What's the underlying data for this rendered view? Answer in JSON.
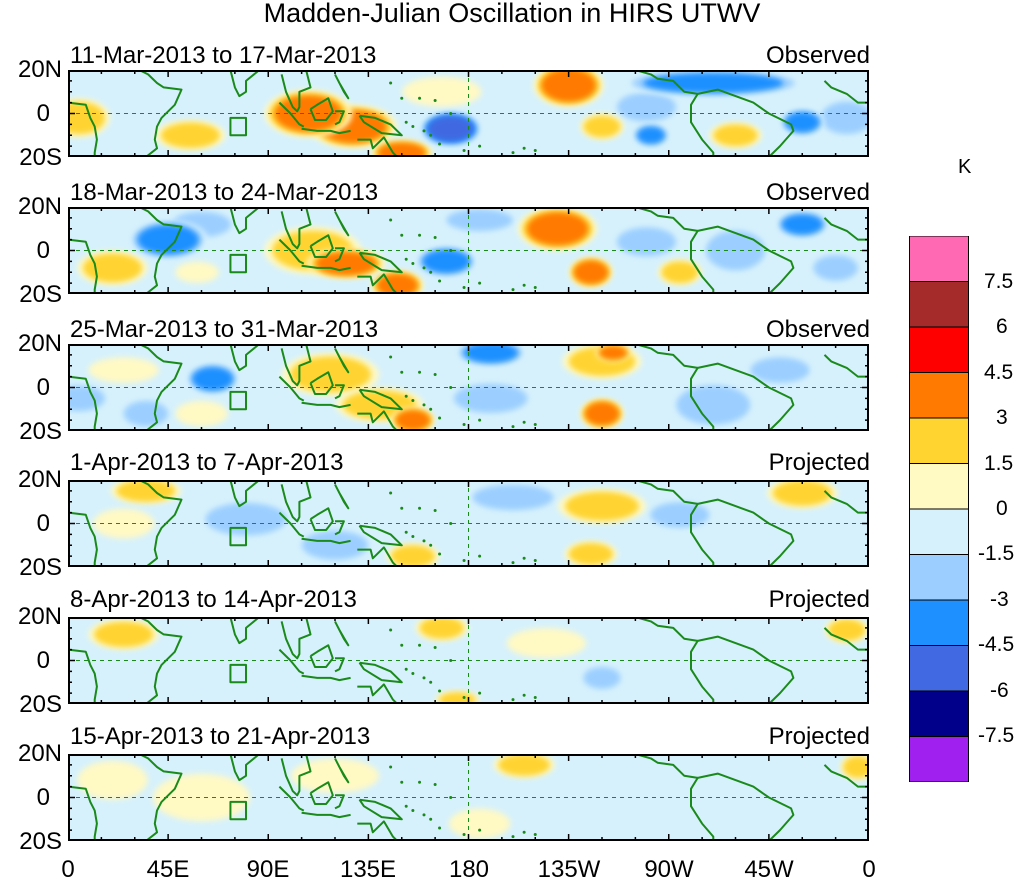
{
  "chart_data": {
    "type": "heatmap",
    "title": "Madden-Julian Oscillation in HIRS UTWV",
    "variable": "HIRS UTWV anomaly",
    "x_ticks": [
      "0",
      "45E",
      "90E",
      "135E",
      "180",
      "135W",
      "90W",
      "45W",
      "0"
    ],
    "y_ticks": [
      "20N",
      "0",
      "20S"
    ],
    "x_range_deg": [
      0,
      360
    ],
    "y_range_deg": [
      -20,
      20
    ],
    "colorbar": {
      "unit": "K",
      "tick_labels": [
        "7.5",
        "6",
        "4.5",
        "3",
        "1.5",
        "0",
        "-1.5",
        "-3",
        "-4.5",
        "-6",
        "-7.5"
      ],
      "levels": [
        -7.5,
        -6,
        -4.5,
        -3,
        -1.5,
        0,
        1.5,
        3,
        4.5,
        6,
        7.5
      ],
      "colors": [
        "#a020f0",
        "#00008b",
        "#4169e1",
        "#1e90ff",
        "#9ccfff",
        "#d6f1fc",
        "#fff9c4",
        "#ffd431",
        "#ff7a00",
        "#ff0000",
        "#a52a2a",
        "#ff69b4"
      ]
    },
    "panels": [
      {
        "label": "11-Mar-2013 to 17-Mar-2013",
        "kind": "Observed",
        "features": [
          {
            "lon": 5,
            "lat": -2,
            "v": 1.8,
            "rlon": 12,
            "rlat": 8
          },
          {
            "lon": 35,
            "lat": 10,
            "v": -1.4,
            "rlon": 12,
            "rlat": 6
          },
          {
            "lon": 55,
            "lat": -10,
            "v": 1.5,
            "rlon": 14,
            "rlat": 6
          },
          {
            "lon": 90,
            "lat": 15,
            "v": -1.3,
            "rlon": 10,
            "rlat": 5
          },
          {
            "lon": 108,
            "lat": 0,
            "v": 3.4,
            "rlon": 18,
            "rlat": 10
          },
          {
            "lon": 128,
            "lat": -6,
            "v": 3.3,
            "rlon": 18,
            "rlat": 9
          },
          {
            "lon": 150,
            "lat": -18,
            "v": 3.3,
            "rlon": 12,
            "rlat": 5
          },
          {
            "lon": 172,
            "lat": -7,
            "v": -4.6,
            "rlon": 12,
            "rlat": 7
          },
          {
            "lon": 168,
            "lat": 10,
            "v": 1.4,
            "rlon": 16,
            "rlat": 6
          },
          {
            "lon": 225,
            "lat": 13,
            "v": 3.4,
            "rlon": 14,
            "rlat": 9
          },
          {
            "lon": 200,
            "lat": -10,
            "v": -1.4,
            "rlon": 15,
            "rlat": 6
          },
          {
            "lon": 240,
            "lat": -6,
            "v": 1.6,
            "rlon": 8,
            "rlat": 5
          },
          {
            "lon": 260,
            "lat": 3,
            "v": -1.5,
            "rlon": 14,
            "rlat": 7
          },
          {
            "lon": 262,
            "lat": -10,
            "v": -3.2,
            "rlon": 6,
            "rlat": 4
          },
          {
            "lon": 290,
            "lat": 14,
            "v": -3.0,
            "rlon": 40,
            "rlat": 5
          },
          {
            "lon": 300,
            "lat": -10,
            "v": 1.6,
            "rlon": 10,
            "rlat": 5
          },
          {
            "lon": 330,
            "lat": -4,
            "v": -3.2,
            "rlon": 8,
            "rlat": 5
          },
          {
            "lon": 350,
            "lat": -2,
            "v": -1.6,
            "rlon": 12,
            "rlat": 8
          }
        ]
      },
      {
        "label": "18-Mar-2013 to 24-Mar-2013",
        "kind": "Observed",
        "features": [
          {
            "lon": 20,
            "lat": -8,
            "v": 1.5,
            "rlon": 14,
            "rlat": 7
          },
          {
            "lon": 45,
            "lat": 5,
            "v": -3.1,
            "rlon": 16,
            "rlat": 8
          },
          {
            "lon": 60,
            "lat": 12,
            "v": -1.5,
            "rlon": 14,
            "rlat": 6
          },
          {
            "lon": 80,
            "lat": -10,
            "v": -1.4,
            "rlon": 14,
            "rlat": 6
          },
          {
            "lon": 58,
            "lat": -10,
            "v": 1.4,
            "rlon": 8,
            "rlat": 4
          },
          {
            "lon": 110,
            "lat": 0,
            "v": 1.8,
            "rlon": 20,
            "rlat": 10
          },
          {
            "lon": 125,
            "lat": -6,
            "v": 3.1,
            "rlon": 16,
            "rlat": 6
          },
          {
            "lon": 148,
            "lat": -16,
            "v": 3.3,
            "rlon": 10,
            "rlat": 6
          },
          {
            "lon": 170,
            "lat": -5,
            "v": -3.1,
            "rlon": 12,
            "rlat": 6
          },
          {
            "lon": 110,
            "lat": 16,
            "v": -1.4,
            "rlon": 15,
            "rlat": 4
          },
          {
            "lon": 185,
            "lat": 14,
            "v": -1.5,
            "rlon": 16,
            "rlat": 5
          },
          {
            "lon": 220,
            "lat": 10,
            "v": 3.4,
            "rlon": 16,
            "rlat": 9
          },
          {
            "lon": 235,
            "lat": -10,
            "v": 3.1,
            "rlon": 8,
            "rlat": 6
          },
          {
            "lon": 260,
            "lat": 4,
            "v": -1.6,
            "rlon": 14,
            "rlat": 7
          },
          {
            "lon": 275,
            "lat": -10,
            "v": 1.5,
            "rlon": 8,
            "rlat": 5
          },
          {
            "lon": 300,
            "lat": 0,
            "v": -1.6,
            "rlon": 14,
            "rlat": 10
          },
          {
            "lon": 330,
            "lat": 12,
            "v": -3.0,
            "rlon": 10,
            "rlat": 5
          },
          {
            "lon": 345,
            "lat": -8,
            "v": -1.5,
            "rlon": 10,
            "rlat": 6
          }
        ]
      },
      {
        "label": "25-Mar-2013 to 31-Mar-2013",
        "kind": "Observed",
        "features": [
          {
            "lon": 5,
            "lat": -5,
            "v": -1.6,
            "rlon": 12,
            "rlat": 6
          },
          {
            "lon": 25,
            "lat": 8,
            "v": 1.4,
            "rlon": 14,
            "rlat": 5
          },
          {
            "lon": 35,
            "lat": -12,
            "v": -1.5,
            "rlon": 10,
            "rlat": 6
          },
          {
            "lon": 65,
            "lat": 4,
            "v": -3.1,
            "rlon": 10,
            "rlat": 6
          },
          {
            "lon": 60,
            "lat": -12,
            "v": 1.4,
            "rlon": 10,
            "rlat": 5
          },
          {
            "lon": 118,
            "lat": 6,
            "v": 1.5,
            "rlon": 20,
            "rlat": 9
          },
          {
            "lon": 140,
            "lat": -8,
            "v": 1.5,
            "rlon": 18,
            "rlat": 7
          },
          {
            "lon": 155,
            "lat": -15,
            "v": 3.1,
            "rlon": 8,
            "rlat": 5
          },
          {
            "lon": 190,
            "lat": 16,
            "v": -3.1,
            "rlon": 14,
            "rlat": 5
          },
          {
            "lon": 190,
            "lat": -5,
            "v": -1.6,
            "rlon": 18,
            "rlat": 7
          },
          {
            "lon": 240,
            "lat": 12,
            "v": 1.8,
            "rlon": 16,
            "rlat": 7
          },
          {
            "lon": 245,
            "lat": 16,
            "v": 3.2,
            "rlon": 6,
            "rlat": 3
          },
          {
            "lon": 240,
            "lat": -12,
            "v": 3.3,
            "rlon": 8,
            "rlat": 6
          },
          {
            "lon": 290,
            "lat": -8,
            "v": -1.5,
            "rlon": 18,
            "rlat": 10
          },
          {
            "lon": 320,
            "lat": 8,
            "v": -1.5,
            "rlon": 14,
            "rlat": 6
          }
        ]
      },
      {
        "label": "1-Apr-2013 to 7-Apr-2013",
        "kind": "Projected",
        "features": [
          {
            "lon": 35,
            "lat": 15,
            "v": 1.6,
            "rlon": 14,
            "rlat": 5
          },
          {
            "lon": 25,
            "lat": 0,
            "v": 1.4,
            "rlon": 12,
            "rlat": 6
          },
          {
            "lon": 80,
            "lat": 2,
            "v": -1.5,
            "rlon": 20,
            "rlat": 8
          },
          {
            "lon": 120,
            "lat": -10,
            "v": -1.5,
            "rlon": 16,
            "rlat": 7
          },
          {
            "lon": 155,
            "lat": -15,
            "v": 1.6,
            "rlon": 10,
            "rlat": 5
          },
          {
            "lon": 200,
            "lat": 12,
            "v": -1.6,
            "rlon": 20,
            "rlat": 6
          },
          {
            "lon": 240,
            "lat": 8,
            "v": 1.8,
            "rlon": 18,
            "rlat": 7
          },
          {
            "lon": 235,
            "lat": -14,
            "v": 1.7,
            "rlon": 10,
            "rlat": 5
          },
          {
            "lon": 275,
            "lat": 4,
            "v": -1.5,
            "rlon": 14,
            "rlat": 6
          },
          {
            "lon": 330,
            "lat": 14,
            "v": 1.8,
            "rlon": 14,
            "rlat": 6
          },
          {
            "lon": 310,
            "lat": -10,
            "v": -1.4,
            "rlon": 14,
            "rlat": 6
          }
        ]
      },
      {
        "label": "8-Apr-2013 to 14-Apr-2013",
        "kind": "Projected",
        "features": [
          {
            "lon": 25,
            "lat": 12,
            "v": 1.6,
            "rlon": 14,
            "rlat": 6
          },
          {
            "lon": 70,
            "lat": 2,
            "v": -1.3,
            "rlon": 18,
            "rlat": 7
          },
          {
            "lon": 120,
            "lat": 10,
            "v": -1.3,
            "rlon": 16,
            "rlat": 6
          },
          {
            "lon": 140,
            "lat": -12,
            "v": -1.4,
            "rlon": 14,
            "rlat": 6
          },
          {
            "lon": 168,
            "lat": 15,
            "v": 1.6,
            "rlon": 10,
            "rlat": 5
          },
          {
            "lon": 175,
            "lat": -18,
            "v": 1.7,
            "rlon": 8,
            "rlat": 3
          },
          {
            "lon": 215,
            "lat": 8,
            "v": 1.2,
            "rlon": 16,
            "rlat": 6
          },
          {
            "lon": 240,
            "lat": -8,
            "v": -1.6,
            "rlon": 8,
            "rlat": 5
          },
          {
            "lon": 280,
            "lat": 0,
            "v": -1.3,
            "rlon": 18,
            "rlat": 8
          },
          {
            "lon": 350,
            "lat": 14,
            "v": 1.6,
            "rlon": 8,
            "rlat": 5
          }
        ]
      },
      {
        "label": "15-Apr-2013 to 21-Apr-2013",
        "kind": "Projected",
        "features": [
          {
            "lon": 20,
            "lat": 8,
            "v": 1.2,
            "rlon": 14,
            "rlat": 8
          },
          {
            "lon": 60,
            "lat": 0,
            "v": 1.0,
            "rlon": 20,
            "rlat": 10
          },
          {
            "lon": 120,
            "lat": 10,
            "v": 1.2,
            "rlon": 18,
            "rlat": 7
          },
          {
            "lon": 140,
            "lat": -10,
            "v": -1.0,
            "rlon": 14,
            "rlat": 6
          },
          {
            "lon": 205,
            "lat": 15,
            "v": 1.6,
            "rlon": 12,
            "rlat": 5
          },
          {
            "lon": 185,
            "lat": -12,
            "v": 1.2,
            "rlon": 12,
            "rlat": 6
          },
          {
            "lon": 260,
            "lat": 6,
            "v": -1.2,
            "rlon": 22,
            "rlat": 7
          },
          {
            "lon": 320,
            "lat": -4,
            "v": -1.0,
            "rlon": 18,
            "rlat": 8
          },
          {
            "lon": 355,
            "lat": 14,
            "v": 1.6,
            "rlon": 6,
            "rlat": 5
          }
        ]
      }
    ]
  }
}
